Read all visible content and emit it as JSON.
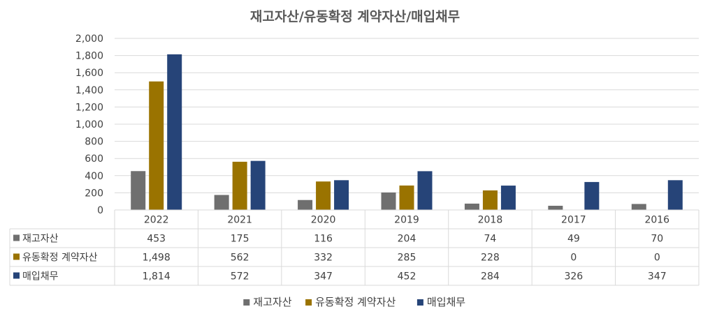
{
  "chart_data": {
    "type": "bar",
    "title": "재고자산/유동확정 계약자산/매입채무",
    "categories": [
      "2022",
      "2021",
      "2020",
      "2019",
      "2018",
      "2017",
      "2016"
    ],
    "ylim": [
      0,
      2000
    ],
    "yticks": [
      "0",
      "200",
      "400",
      "600",
      "800",
      "1,000",
      "1,200",
      "1,400",
      "1,600",
      "1,800",
      "2,000"
    ],
    "grid": true,
    "legend_position": "bottom",
    "data_table": true,
    "series": [
      {
        "name": "재고자산",
        "color": "#6f6f6f",
        "values": [
          453,
          175,
          116,
          204,
          74,
          49,
          70
        ],
        "labels": [
          "453",
          "175",
          "116",
          "204",
          "74",
          "49",
          "70"
        ]
      },
      {
        "name": "유동확정 계약자산",
        "color": "#9a7300",
        "values": [
          1498,
          562,
          332,
          285,
          228,
          0,
          0
        ],
        "labels": [
          "1,498",
          "562",
          "332",
          "285",
          "228",
          "0",
          "0"
        ]
      },
      {
        "name": "매입채무",
        "color": "#264478",
        "values": [
          1814,
          572,
          347,
          452,
          284,
          326,
          347
        ],
        "labels": [
          "1,814",
          "572",
          "347",
          "452",
          "284",
          "326",
          "347"
        ]
      }
    ]
  }
}
